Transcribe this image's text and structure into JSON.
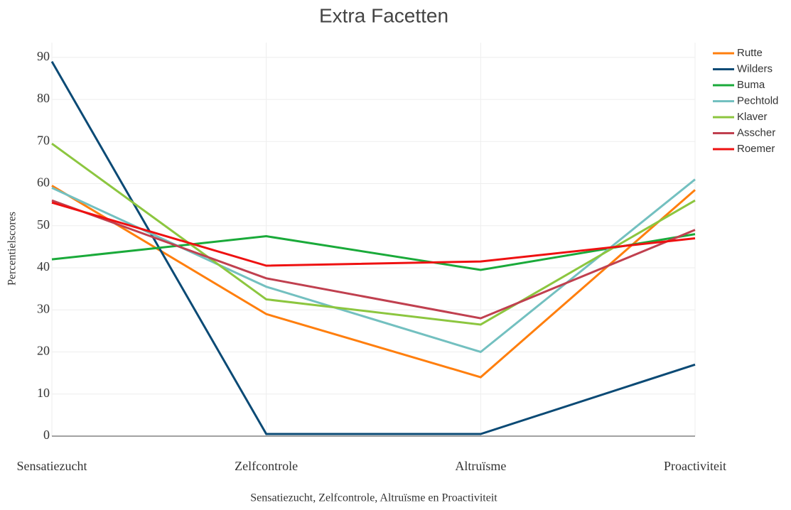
{
  "chart_data": {
    "type": "line",
    "title": "Extra Facetten",
    "x_label": "Sensatiezucht, Zelfcontrole, Altruïsme en Proactiviteit",
    "y_label": "Percentielscores",
    "categories": [
      "Sensatiezucht",
      "Zelfcontrole",
      "Altruïsme",
      "Proactiviteit"
    ],
    "series": [
      {
        "name": "Rutte",
        "color": "#ff7f0e",
        "values": [
          59.5,
          29,
          14,
          58.5
        ]
      },
      {
        "name": "Wilders",
        "color": "#0b4a75",
        "values": [
          89,
          0.5,
          0.5,
          17
        ]
      },
      {
        "name": "Buma",
        "color": "#1aaa3a",
        "values": [
          42,
          47.5,
          39.5,
          48
        ]
      },
      {
        "name": "Pechtold",
        "color": "#73c0c0",
        "values": [
          59,
          35.5,
          20,
          61
        ]
      },
      {
        "name": "Klaver",
        "color": "#8cc63f",
        "values": [
          69.5,
          32.5,
          26.5,
          56
        ]
      },
      {
        "name": "Asscher",
        "color": "#c0404f",
        "values": [
          56,
          37.5,
          28,
          49
        ]
      },
      {
        "name": "Roemer",
        "color": "#ee1111",
        "values": [
          55.5,
          40.5,
          41.5,
          47
        ]
      }
    ],
    "ylim": [
      0,
      93.5
    ],
    "yticks": [
      0,
      10,
      20,
      30,
      40,
      50,
      60,
      70,
      80,
      90
    ],
    "grid": true,
    "legend": "top-right"
  }
}
